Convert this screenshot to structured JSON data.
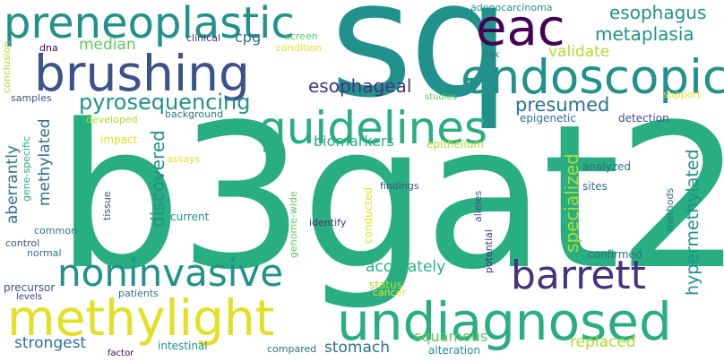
{
  "words": {
    "b3gat2": "b3gat2",
    "sq": "sq",
    "methylight": "methylight",
    "undiagnosed": "undiagnosed",
    "brushing": "brushing",
    "endoscopic": "endoscopic",
    "preneoplastic": "preneoplastic",
    "eac": "eac",
    "guidelines": "guidelines",
    "noninvasive": "noninvasive",
    "barrett": "barrett",
    "esophagus": "esophagus",
    "metaplasia": "metaplasia",
    "pyrosequencing": "pyrosequencing",
    "esophageal": "esophageal",
    "presumed": "presumed",
    "validate": "validate",
    "median": "median",
    "cpg": "cpg",
    "clinical": "clinical",
    "screen": "screen",
    "condition": "condition",
    "risk": "risk",
    "adenocarcinoma": "adenocarcinoma",
    "dna": "dna",
    "conclusion": "conclusion",
    "samples": "samples",
    "studies": "studies",
    "support": "support",
    "epigenetic": "epigenetic",
    "detection": "detection",
    "background": "background",
    "developed": "developed",
    "impact": "impact",
    "biomarkers": "biomarkers",
    "epithelium": "epithelium",
    "aberrantly": "aberrantly",
    "methylated": "methylated",
    "gene_specific": "gene-specific",
    "discovered": "discovered",
    "assays": "assays",
    "genome_wide": "genome-wide",
    "hypermethylated": "hypermethylated",
    "specialized": "specialized",
    "analyzed": "analyzed",
    "findings": "findings",
    "sites": "sites",
    "current": "current",
    "tissue": "tissue",
    "identify": "identify",
    "alleles": "alleles",
    "conducted": "conducted",
    "potential": "potential",
    "methods": "methods",
    "common": "common",
    "control": "control",
    "normal": "normal",
    "accurately": "accurately",
    "confirmed": "confirmed",
    "precursor": "precursor",
    "levels": "levels",
    "patients": "patients",
    "status": "status",
    "cancer": "cancer",
    "strongest": "strongest",
    "stomach": "stomach",
    "squamous": "squamous",
    "replaced": "replaced",
    "intestinal": "intestinal",
    "compared": "compared",
    "alteration": "alteration",
    "factor": "factor"
  },
  "colors": {
    "dark_purple": "#440154",
    "indigo": "#46327e",
    "blue": "#3b528b",
    "steel_teal": "#2c728e",
    "teal": "#21918c",
    "green": "#28ae80",
    "light_green": "#5ec962",
    "lime": "#addc30",
    "yellow": "#e2df24",
    "background": "#ffffff"
  }
}
